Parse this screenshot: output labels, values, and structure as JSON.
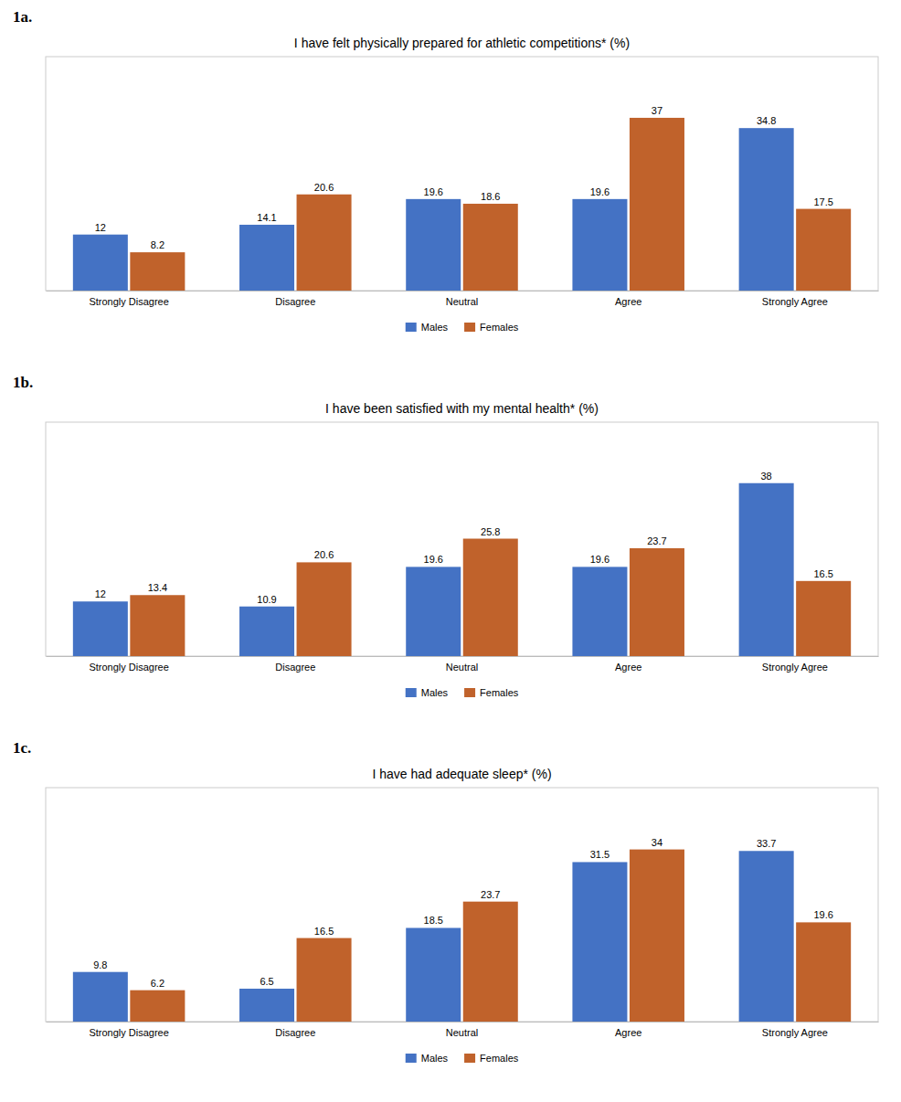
{
  "chart_data": [
    {
      "type": "bar",
      "annotations": [
        "1a."
      ],
      "title": "I have felt physically prepared for athletic competitions* (%)",
      "categories": [
        "Strongly Disagree",
        "Disagree",
        "Neutral",
        "Agree",
        "Strongly Agree"
      ],
      "series": [
        {
          "name": "Males",
          "color": "#4472C4",
          "values": [
            12.0,
            14.1,
            19.6,
            19.6,
            34.8
          ]
        },
        {
          "name": "Females",
          "color": "#C0622B",
          "values": [
            8.2,
            20.6,
            18.6,
            37.0,
            17.5
          ]
        }
      ],
      "ylim": [
        0,
        50.1
      ],
      "data_labels": true,
      "tick_labels": "x",
      "legend": "bottom",
      "grid": false
    },
    {
      "type": "bar",
      "annotations": [
        "1b."
      ],
      "title": "I have been satisfied with my mental health* (%)",
      "categories": [
        "Strongly Disagree",
        "Disagree",
        "Neutral",
        "Agree",
        "Strongly Agree"
      ],
      "series": [
        {
          "name": "Males",
          "color": "#4472C4",
          "values": [
            12.0,
            10.9,
            19.6,
            19.6,
            38.0
          ]
        },
        {
          "name": "Females",
          "color": "#C0622B",
          "values": [
            13.4,
            20.6,
            25.8,
            23.7,
            16.5
          ]
        }
      ],
      "ylim": [
        0,
        51.4
      ],
      "data_labels": true,
      "tick_labels": "x",
      "legend": "bottom",
      "grid": false
    },
    {
      "type": "bar",
      "annotations": [
        "1c."
      ],
      "title": "I have had adequate sleep* (%)",
      "categories": [
        "Strongly Disagree",
        "Disagree",
        "Neutral",
        "Agree",
        "Strongly Agree"
      ],
      "series": [
        {
          "name": "Males",
          "color": "#4472C4",
          "values": [
            9.8,
            6.5,
            18.5,
            31.5,
            33.7
          ]
        },
        {
          "name": "Females",
          "color": "#C0622B",
          "values": [
            6.2,
            16.5,
            23.7,
            34.0,
            19.6
          ]
        }
      ],
      "ylim": [
        0,
        46.2
      ],
      "data_labels": true,
      "tick_labels": "x",
      "legend": "bottom",
      "grid": false
    }
  ]
}
